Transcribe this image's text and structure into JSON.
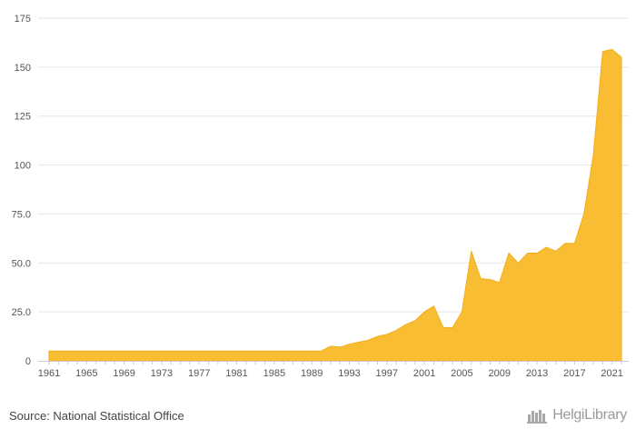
{
  "source_text": "Source: National Statistical Office",
  "brand": {
    "name": "HelgiLibrary"
  },
  "colors": {
    "fill": "#f9bd33",
    "stroke": "#f2ad1a",
    "grid": "#e6e6e6",
    "axis": "#cccccc"
  },
  "chart_data": {
    "type": "area",
    "title": "",
    "xlabel": "",
    "ylabel": "",
    "ylim": [
      0,
      175
    ],
    "xlim": [
      1961,
      2022
    ],
    "grid": true,
    "legend": "none",
    "y_ticks": [
      0,
      25,
      50,
      75,
      100,
      125,
      150,
      175
    ],
    "y_tick_labels": [
      "0",
      "25.0",
      "50.0",
      "75.0",
      "100",
      "125",
      "150",
      "175"
    ],
    "x_ticks": [
      1961,
      1965,
      1969,
      1973,
      1977,
      1981,
      1985,
      1989,
      1993,
      1997,
      2001,
      2005,
      2009,
      2013,
      2017,
      2021
    ],
    "x_tick_labels": [
      "1961",
      "1965",
      "1969",
      "1973",
      "1977",
      "1981",
      "1985",
      "1989",
      "1993",
      "1997",
      "2001",
      "2005",
      "2009",
      "2013",
      "2017",
      "2021"
    ],
    "x": [
      1961,
      1962,
      1963,
      1964,
      1965,
      1966,
      1967,
      1968,
      1969,
      1970,
      1971,
      1972,
      1973,
      1974,
      1975,
      1976,
      1977,
      1978,
      1979,
      1980,
      1981,
      1982,
      1983,
      1984,
      1985,
      1986,
      1987,
      1988,
      1989,
      1990,
      1991,
      1992,
      1993,
      1994,
      1995,
      1996,
      1997,
      1998,
      1999,
      2000,
      2001,
      2002,
      2003,
      2004,
      2005,
      2006,
      2007,
      2008,
      2009,
      2010,
      2011,
      2012,
      2013,
      2014,
      2015,
      2016,
      2017,
      2018,
      2019,
      2020,
      2021,
      2022
    ],
    "values": [
      5,
      5,
      5,
      5,
      5,
      5,
      5,
      5,
      5,
      5,
      5,
      5,
      5,
      5,
      5,
      5,
      5,
      5,
      5,
      5,
      5,
      5,
      5,
      5,
      5,
      5,
      5,
      5,
      5,
      5,
      7.5,
      7,
      8.5,
      9.5,
      10.5,
      12.5,
      13.5,
      15.5,
      18.5,
      20.5,
      25,
      28,
      17,
      17,
      25,
      56,
      42,
      41.5,
      40,
      55,
      50,
      55,
      55,
      58,
      56,
      60,
      60,
      75,
      105,
      158,
      159,
      155
    ]
  }
}
